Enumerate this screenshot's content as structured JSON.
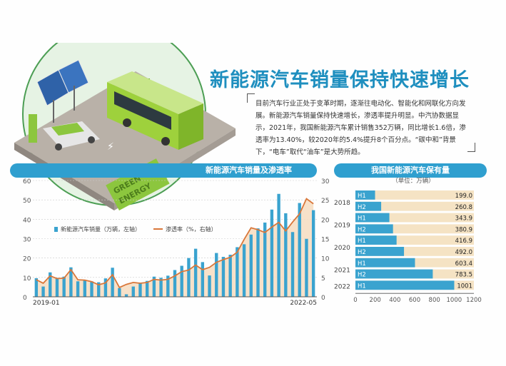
{
  "title": "新能源汽车销量保持快速增长",
  "intro": "目前汽车行业正处于变革时期，逐渐往电动化、智能化和网联化方向发展。新能源汽车销量保持快速增长，渗透率提升明显。中汽协数据显示，2021年，我国新能源汽车累计销售352万辆，同比增长1.6倍，渗透率为13.40%，较2020年的5.4%提升8个百分点。“碳中和”背景下，“电车”取代“油车”是大势所趋。",
  "illustration": {
    "sign_line1": "GREEN",
    "sign_line2": "ENERGY"
  },
  "colors": {
    "bar": "#3aa3cf",
    "line": "#d9773a",
    "area": "#f6dcbf",
    "header": "#2f9fcf",
    "h_bar": "#3aa3cf",
    "h_bg": "#f5e3c4"
  },
  "left_header": "新能源汽车销量及渗透率",
  "right_header": "我国新能源汽车保有量",
  "chart_data": [
    {
      "type": "bar",
      "title": "新能源汽车销量及渗透率",
      "x_start_label": "2019-01",
      "x_end_label": "2022-05",
      "ylim_left": [
        0,
        60
      ],
      "ylim_right": [
        0,
        30
      ],
      "left_ticks": [
        "0",
        "10",
        "20",
        "30",
        "40",
        "50",
        "60"
      ],
      "right_ticks": [
        "0",
        "5",
        "10",
        "15",
        "20",
        "25",
        "30"
      ],
      "grid": true,
      "legend_position": "middle-left",
      "series": [
        {
          "name": "新能源汽车销量（万辆，左轴）",
          "type": "bar",
          "values": [
            9.6,
            5.3,
            12.6,
            9.8,
            10.4,
            15.2,
            8.0,
            8.5,
            8.0,
            7.5,
            9.5,
            15.0,
            4.5,
            1.3,
            5.3,
            7.2,
            8.2,
            10.4,
            9.8,
            10.9,
            13.8,
            16.0,
            20.0,
            24.8,
            17.9,
            11.0,
            22.6,
            20.6,
            21.7,
            25.6,
            27.1,
            32.1,
            35.3,
            38.3,
            45.0,
            53.1,
            43.1,
            33.4,
            48.4,
            29.9,
            44.7
          ]
        },
        {
          "name": "渗透率（%，右轴）",
          "type": "line",
          "values": [
            4.4,
            3.5,
            5.4,
            4.7,
            4.8,
            7.0,
            4.4,
            4.3,
            3.9,
            3.1,
            3.6,
            5.7,
            2.4,
            3.2,
            3.7,
            3.5,
            3.7,
            4.5,
            4.3,
            4.5,
            5.4,
            6.5,
            6.9,
            8.2,
            7.0,
            7.6,
            8.9,
            9.6,
            10.2,
            11.5,
            14.8,
            17.8,
            17.3,
            16.6,
            18.0,
            19.2,
            17.0,
            19.3,
            21.4,
            25.3,
            24.0
          ]
        }
      ]
    },
    {
      "type": "bar",
      "title": "我国新能源汽车保有量",
      "unit": "（单位：万辆）",
      "orientation": "horizontal",
      "xlim": [
        0,
        1200
      ],
      "x_ticks": [
        "0",
        "200",
        "400",
        "600",
        "800",
        "1000",
        "1200"
      ],
      "year_labels": [
        "2018",
        "2019",
        "2020",
        "2021",
        "2022"
      ],
      "categories": [
        "2018 H1",
        "2018 H2",
        "2019 H1",
        "2019 H2",
        "2020 H1",
        "2020 H2",
        "2021 H1",
        "2021 H2",
        "2022 H1"
      ],
      "half_labels": [
        "H1",
        "H2",
        "H1",
        "H2",
        "H1",
        "H2",
        "H1",
        "H2",
        "H1"
      ],
      "values": [
        199.0,
        260.8,
        343.9,
        380.9,
        416.9,
        492.0,
        603.4,
        783.5,
        1001
      ],
      "value_labels": [
        "199.0",
        "260.8",
        "343.9",
        "380.9",
        "416.9",
        "492.0",
        "603.4",
        "783.5",
        "1001"
      ]
    }
  ]
}
